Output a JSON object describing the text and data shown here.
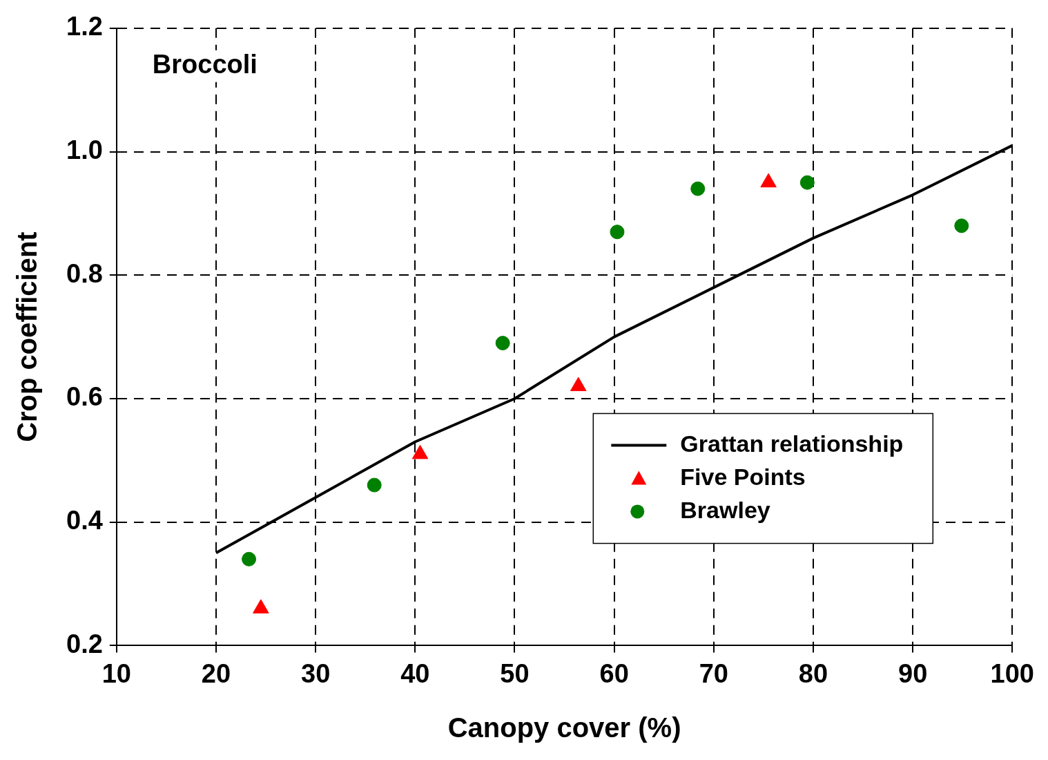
{
  "chart_data": {
    "type": "scatter",
    "xlabel": "Canopy cover (%)",
    "ylabel": "Crop coefficient",
    "annotations": [
      "Broccoli"
    ],
    "xlim": [
      10,
      100
    ],
    "xticks": [
      10,
      20,
      30,
      40,
      50,
      60,
      70,
      80,
      90,
      100
    ],
    "ylim": [
      0.2,
      1.2
    ],
    "yticks": [
      {
        "value": 0.2,
        "label": "0.2"
      },
      {
        "value": 0.4,
        "label": "0.4"
      },
      {
        "value": 0.6,
        "label": "0.6"
      },
      {
        "value": 0.8,
        "label": "0.8"
      },
      {
        "value": 1.0,
        "label": "1.0"
      },
      {
        "value": 1.2,
        "label": "1.2"
      }
    ],
    "grid": true,
    "legend": "bottom right",
    "series": [
      {
        "name": "Grattan relationship",
        "type": "line",
        "color": "#000000",
        "marker": "none",
        "line_style": "solid",
        "x": [
          20,
          30,
          40,
          50,
          60,
          70,
          80,
          90,
          100
        ],
        "values": [
          0.35,
          0.44,
          0.53,
          0.6,
          0.7,
          0.78,
          0.86,
          0.93,
          1.01
        ]
      },
      {
        "name": "Five Points",
        "type": "scatter",
        "color": "#ff0000",
        "marker": "triangle",
        "x": [
          24.5,
          40.5,
          56.4,
          75.5
        ],
        "values": [
          0.26,
          0.51,
          0.62,
          0.95
        ]
      },
      {
        "name": "Brawley",
        "type": "scatter",
        "color": "#008000",
        "marker": "circle",
        "x": [
          23.3,
          35.9,
          48.8,
          60.3,
          68.4,
          79.4,
          94.9
        ],
        "values": [
          0.34,
          0.46,
          0.69,
          0.87,
          0.94,
          0.95,
          0.88
        ]
      }
    ]
  }
}
